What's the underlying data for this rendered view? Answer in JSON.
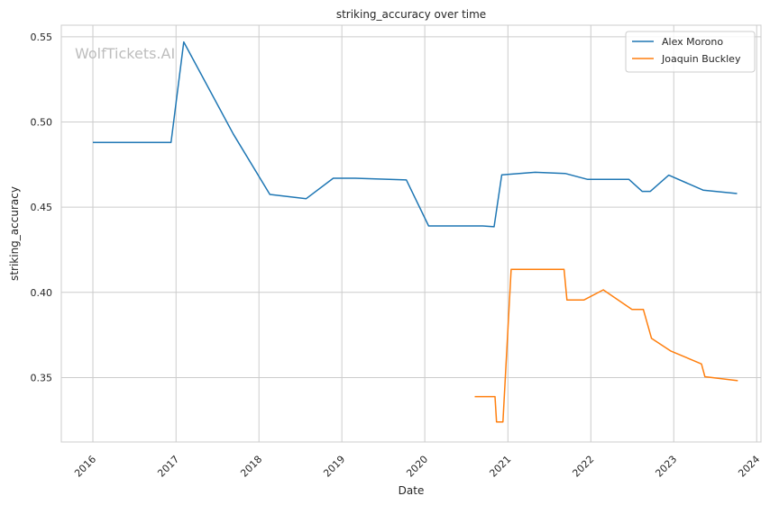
{
  "chart_data": {
    "type": "line",
    "title": "striking_accuracy over time",
    "xlabel": "Date",
    "ylabel": "striking_accuracy",
    "watermark": "WolfTickets.AI",
    "xlim": [
      "2015-08-15",
      "2024-01-20"
    ],
    "ylim": [
      0.3122,
      0.5568
    ],
    "x_ticks": [
      {
        "date": "2016-01-01",
        "label": "2016"
      },
      {
        "date": "2017-01-01",
        "label": "2017"
      },
      {
        "date": "2018-01-01",
        "label": "2018"
      },
      {
        "date": "2019-01-01",
        "label": "2019"
      },
      {
        "date": "2020-01-01",
        "label": "2020"
      },
      {
        "date": "2021-01-01",
        "label": "2021"
      },
      {
        "date": "2022-01-01",
        "label": "2022"
      },
      {
        "date": "2023-01-01",
        "label": "2023"
      },
      {
        "date": "2024-01-01",
        "label": "2024"
      }
    ],
    "y_ticks": [
      {
        "value": 0.35,
        "label": "0.35"
      },
      {
        "value": 0.4,
        "label": "0.40"
      },
      {
        "value": 0.45,
        "label": "0.45"
      },
      {
        "value": 0.5,
        "label": "0.50"
      },
      {
        "value": 0.55,
        "label": "0.55"
      }
    ],
    "grid": true,
    "legend_position": "top-right",
    "series": [
      {
        "name": "Alex Morono",
        "color": "#1f77b4",
        "points": [
          {
            "x": "2016-01-01",
            "y": 0.488
          },
          {
            "x": "2016-12-10",
            "y": 0.488
          },
          {
            "x": "2017-02-04",
            "y": 0.547
          },
          {
            "x": "2017-09-10",
            "y": 0.493
          },
          {
            "x": "2018-02-18",
            "y": 0.4575
          },
          {
            "x": "2018-07-28",
            "y": 0.455
          },
          {
            "x": "2018-11-24",
            "y": 0.467
          },
          {
            "x": "2019-03-01",
            "y": 0.467
          },
          {
            "x": "2019-10-12",
            "y": 0.466
          },
          {
            "x": "2020-01-18",
            "y": 0.439
          },
          {
            "x": "2020-09-12",
            "y": 0.439
          },
          {
            "x": "2020-11-01",
            "y": 0.4385
          },
          {
            "x": "2020-12-05",
            "y": 0.469
          },
          {
            "x": "2021-05-01",
            "y": 0.4705
          },
          {
            "x": "2021-09-10",
            "y": 0.4698
          },
          {
            "x": "2021-12-18",
            "y": 0.4663
          },
          {
            "x": "2022-06-18",
            "y": 0.4663
          },
          {
            "x": "2022-08-15",
            "y": 0.4593
          },
          {
            "x": "2022-09-20",
            "y": 0.4593
          },
          {
            "x": "2022-12-10",
            "y": 0.4688
          },
          {
            "x": "2023-05-10",
            "y": 0.46
          },
          {
            "x": "2023-10-07",
            "y": 0.458
          }
        ]
      },
      {
        "name": "Joaquin Buckley",
        "color": "#ff7f0e",
        "points": [
          {
            "x": "2020-08-08",
            "y": 0.3388
          },
          {
            "x": "2020-11-05",
            "y": 0.3388
          },
          {
            "x": "2020-11-12",
            "y": 0.324
          },
          {
            "x": "2020-12-10",
            "y": 0.324
          },
          {
            "x": "2021-01-15",
            "y": 0.4135
          },
          {
            "x": "2021-09-05",
            "y": 0.4135
          },
          {
            "x": "2021-09-18",
            "y": 0.3955
          },
          {
            "x": "2021-12-01",
            "y": 0.3955
          },
          {
            "x": "2022-02-25",
            "y": 0.4015
          },
          {
            "x": "2022-07-01",
            "y": 0.39
          },
          {
            "x": "2022-08-20",
            "y": 0.39
          },
          {
            "x": "2022-09-25",
            "y": 0.373
          },
          {
            "x": "2022-12-20",
            "y": 0.3655
          },
          {
            "x": "2023-05-03",
            "y": 0.358
          },
          {
            "x": "2023-05-18",
            "y": 0.3505
          },
          {
            "x": "2023-10-10",
            "y": 0.3482
          }
        ]
      }
    ]
  }
}
